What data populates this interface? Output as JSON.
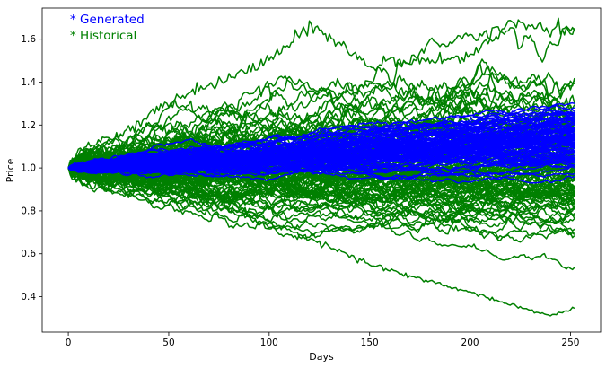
{
  "chart_data": {
    "type": "line",
    "title": "",
    "xlabel": "Days",
    "ylabel": "Price",
    "xlim": [
      -13,
      265
    ],
    "ylim": [
      0.235,
      1.745
    ],
    "xticks": [
      0,
      50,
      100,
      150,
      200,
      250
    ],
    "yticks": [
      0.4,
      0.6,
      0.8,
      1.0,
      1.2,
      1.4,
      1.6
    ],
    "ytick_labels": [
      "0.4",
      "0.6",
      "0.8",
      "1.0",
      "1.2",
      "1.4",
      "1.6"
    ],
    "grid": false,
    "legend_placement": "top-left",
    "days": 252,
    "start_price": 1.0,
    "series_groups": [
      {
        "name": "Historical",
        "legend_label": "* Historical",
        "color": "#008000",
        "path_count": 100,
        "annual_drift": 0.04,
        "annual_volatility": 0.2,
        "final_price_range": [
          0.3,
          1.65
        ],
        "notable_paths": [
          {
            "description": "highest path",
            "x": [
              0,
              50,
              100,
              120,
              150,
              200,
              220,
              252
            ],
            "y": [
              1.0,
              1.3,
              1.5,
              1.67,
              1.48,
              1.52,
              1.68,
              1.64
            ]
          },
          {
            "description": "lowest path",
            "x": [
              0,
              50,
              100,
              150,
              200,
              240,
              252
            ],
            "y": [
              1.0,
              0.92,
              0.75,
              0.55,
              0.42,
              0.31,
              0.35
            ]
          }
        ]
      },
      {
        "name": "Generated",
        "legend_label": "* Generated",
        "color": "#0000ff",
        "path_count": 100,
        "annual_drift": 0.12,
        "annual_volatility": 0.06,
        "final_price_range": [
          1.0,
          1.33
        ]
      }
    ]
  }
}
